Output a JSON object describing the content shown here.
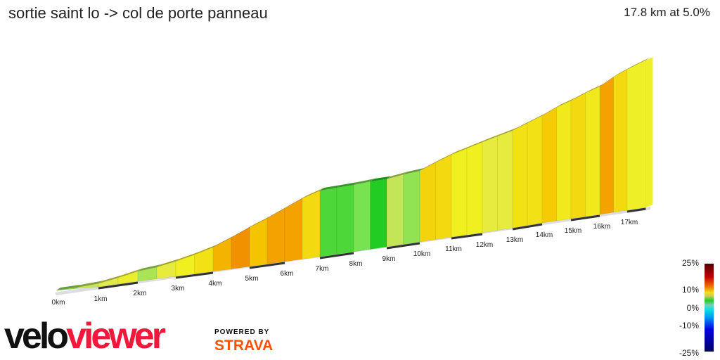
{
  "header": {
    "title": "sortie saint lo -> col de porte panneau",
    "summary": "17.8 km at 5.0%"
  },
  "legend": {
    "labels": [
      "25%",
      "10%",
      "0%",
      "-10%",
      "-25%"
    ]
  },
  "branding": {
    "logo_velo": "velo",
    "logo_viewer": "viewer",
    "powered_by": "POWERED BY",
    "strava": "STRAVA"
  },
  "chart_data": {
    "type": "area",
    "title": "sortie saint lo -> col de porte panneau",
    "xlabel": "",
    "ylabel": "",
    "distance_km": 17.8,
    "average_gradient_pct": 5.0,
    "x_tick_labels": [
      "0km",
      "1km",
      "2km",
      "3km",
      "4km",
      "5km",
      "6km",
      "7km",
      "8km",
      "9km",
      "10km",
      "11km",
      "12km",
      "13km",
      "14km",
      "15km",
      "16km",
      "17km"
    ],
    "segments": {
      "start_km": [
        0,
        0.5,
        1,
        1.5,
        2,
        2.5,
        3,
        3.5,
        4,
        4.5,
        5,
        5.5,
        6,
        6.5,
        7,
        7.5,
        8,
        8.5,
        9,
        9.5,
        10,
        10.5,
        11,
        11.5,
        12,
        12.5,
        13,
        13.5,
        14,
        14.5,
        15,
        15.5,
        16,
        16.5,
        17
      ],
      "gradient_pct": [
        1.5,
        2.5,
        3.5,
        4.5,
        2,
        4,
        5,
        6,
        8.5,
        9.5,
        8,
        9,
        9,
        6.5,
        0.5,
        0.5,
        1,
        0,
        2.5,
        1.5,
        7,
        6.5,
        5,
        5,
        4,
        4,
        6,
        6,
        7.5,
        5.5,
        6.5,
        5.5,
        9,
        6.5,
        4.8
      ]
    },
    "color_scale": {
      "min_pct": -25,
      "max_pct": 25,
      "colors": [
        "#000060",
        "#0000e0",
        "#0090f0",
        "#10e0e0",
        "#22cc22",
        "#f0f020",
        "#f08000",
        "#c00000",
        "#4a0000"
      ]
    }
  }
}
